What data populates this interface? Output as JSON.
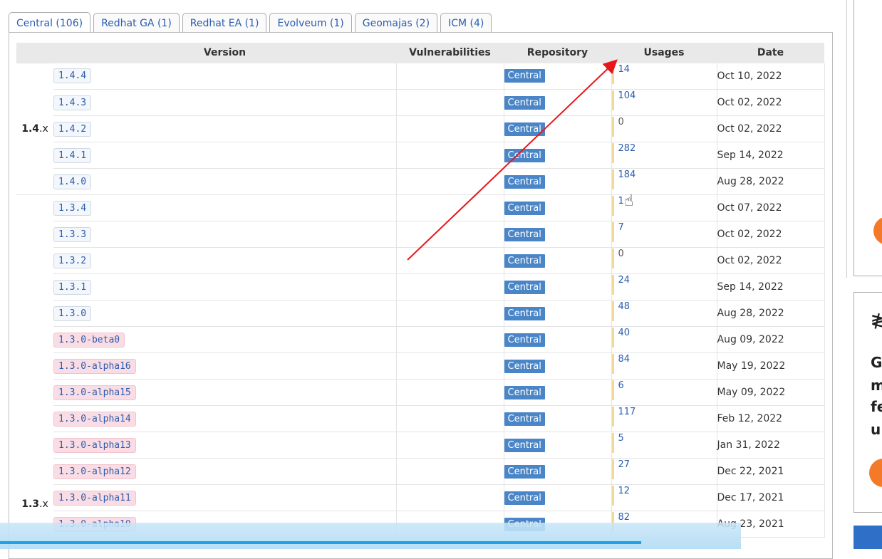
{
  "tabs": [
    {
      "label": "Central (106)"
    },
    {
      "label": "Redhat GA (1)"
    },
    {
      "label": "Redhat EA (1)"
    },
    {
      "label": "Evolveum (1)"
    },
    {
      "label": "Geomajas (2)"
    },
    {
      "label": "ICM (4)"
    }
  ],
  "table": {
    "headers": {
      "version": "Version",
      "vulnerabilities": "Vulnerabilities",
      "repository": "Repository",
      "usages": "Usages",
      "date": "Date"
    },
    "groups": [
      {
        "major": "1.4",
        "suffix": ".x"
      },
      {
        "major": "1.3",
        "suffix": ".x"
      }
    ],
    "rows": [
      {
        "version": "1.4.4",
        "repo": "Central",
        "usages": "14",
        "date": "Oct 10, 2022"
      },
      {
        "version": "1.4.3",
        "repo": "Central",
        "usages": "104",
        "date": "Oct 02, 2022"
      },
      {
        "version": "1.4.2",
        "repo": "Central",
        "usages": "0",
        "date": "Oct 02, 2022"
      },
      {
        "version": "1.4.1",
        "repo": "Central",
        "usages": "282",
        "date": "Sep 14, 2022"
      },
      {
        "version": "1.4.0",
        "repo": "Central",
        "usages": "184",
        "date": "Aug 28, 2022"
      },
      {
        "version": "1.3.4",
        "repo": "Central",
        "usages": "1",
        "date": "Oct 07, 2022"
      },
      {
        "version": "1.3.3",
        "repo": "Central",
        "usages": "7",
        "date": "Oct 02, 2022"
      },
      {
        "version": "1.3.2",
        "repo": "Central",
        "usages": "0",
        "date": "Oct 02, 2022"
      },
      {
        "version": "1.3.1",
        "repo": "Central",
        "usages": "24",
        "date": "Sep 14, 2022"
      },
      {
        "version": "1.3.0",
        "repo": "Central",
        "usages": "48",
        "date": "Aug 28, 2022"
      },
      {
        "version": "1.3.0-beta0",
        "repo": "Central",
        "usages": "40",
        "date": "Aug 09, 2022"
      },
      {
        "version": "1.3.0-alpha16",
        "repo": "Central",
        "usages": "84",
        "date": "May 19, 2022"
      },
      {
        "version": "1.3.0-alpha15",
        "repo": "Central",
        "usages": "6",
        "date": "May 09, 2022"
      },
      {
        "version": "1.3.0-alpha14",
        "repo": "Central",
        "usages": "117",
        "date": "Feb 12, 2022"
      },
      {
        "version": "1.3.0-alpha13",
        "repo": "Central",
        "usages": "5",
        "date": "Jan 31, 2022"
      },
      {
        "version": "1.3.0-alpha12",
        "repo": "Central",
        "usages": "27",
        "date": "Dec 22, 2021"
      },
      {
        "version": "1.3.0-alpha11",
        "repo": "Central",
        "usages": "12",
        "date": "Dec 17, 2021"
      },
      {
        "version": "1.3.0-alpha10",
        "repo": "Central",
        "usages": "82",
        "date": "Aug 23, 2021"
      }
    ]
  },
  "sidebar": {
    "ad_letters": [
      "G",
      "m",
      "fe",
      "u"
    ]
  },
  "colors": {
    "link": "#2a5db0",
    "repo_badge": "#4a86c7",
    "prerelease_badge": "#fadde4",
    "arrow": "#e8161b",
    "accent_orange": "#f47a2a"
  }
}
